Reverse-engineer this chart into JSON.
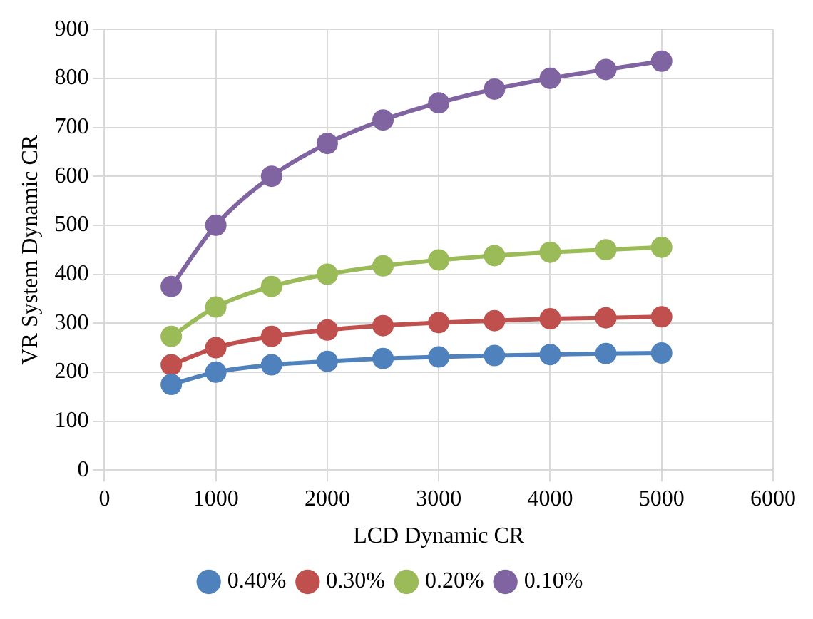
{
  "chart_data": {
    "type": "line",
    "xlabel": "LCD Dynamic CR",
    "ylabel": "VR System Dynamic CR",
    "x": [
      600,
      1000,
      1500,
      2000,
      2500,
      3000,
      3500,
      4000,
      4500,
      5000
    ],
    "series": [
      {
        "name": "0.40%",
        "color": "#4f81bd",
        "values": [
          175,
          200,
          215,
          222,
          228,
          231,
          234,
          236,
          238,
          239
        ]
      },
      {
        "name": "0.30%",
        "color": "#c0504d",
        "values": [
          215,
          250,
          273,
          286,
          295,
          301,
          305,
          309,
          311,
          313
        ]
      },
      {
        "name": "0.20%",
        "color": "#9bbb59",
        "values": [
          273,
          333,
          375,
          400,
          417,
          429,
          438,
          445,
          450,
          455
        ]
      },
      {
        "name": "0.10%",
        "color": "#8064a2",
        "values": [
          375,
          500,
          600,
          667,
          715,
          750,
          778,
          800,
          818,
          835
        ]
      }
    ],
    "xlim": [
      0,
      6000
    ],
    "xticks": [
      0,
      1000,
      2000,
      3000,
      4000,
      5000,
      6000
    ],
    "ylim": [
      0,
      900
    ],
    "yticks": [
      0,
      100,
      200,
      300,
      400,
      500,
      600,
      700,
      800,
      900
    ],
    "grid": true,
    "legend": "bottom",
    "marker": "circle",
    "line_style": "solid"
  }
}
